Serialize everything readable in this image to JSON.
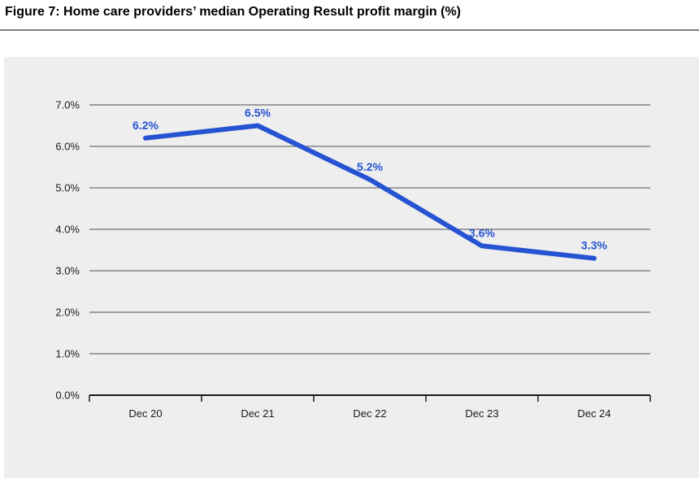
{
  "figure": {
    "title": "Figure 7: Home care providers’ median Operating Result profit margin (%)"
  },
  "chart_data": {
    "type": "line",
    "title": "Home care providers’ median Operating Result profit margin (%)",
    "categories": [
      "Dec 20",
      "Dec 21",
      "Dec 22",
      "Dec 23",
      "Dec 24"
    ],
    "values": [
      6.2,
      6.5,
      5.2,
      3.6,
      3.3
    ],
    "data_labels": [
      "6.2%",
      "6.5%",
      "5.2%",
      "3.6%",
      "3.3%"
    ],
    "y_tick_labels": [
      "0.0%",
      "1.0%",
      "2.0%",
      "3.0%",
      "4.0%",
      "5.0%",
      "6.0%",
      "7.0%"
    ],
    "ylim": [
      0,
      7
    ],
    "y_step": 1,
    "xlabel": "",
    "ylabel": "",
    "grid": "horizontal",
    "legend": "none",
    "colors": {
      "line": "#2653d2",
      "data_label": "#2653d2",
      "plot_background": "#eeeeee",
      "gridline": "#4d4d4d",
      "axis": "#1a1a1a",
      "tick_text": "#1a1a1a",
      "title_text": "#000000",
      "title_rule": "#7f7f7f"
    }
  }
}
